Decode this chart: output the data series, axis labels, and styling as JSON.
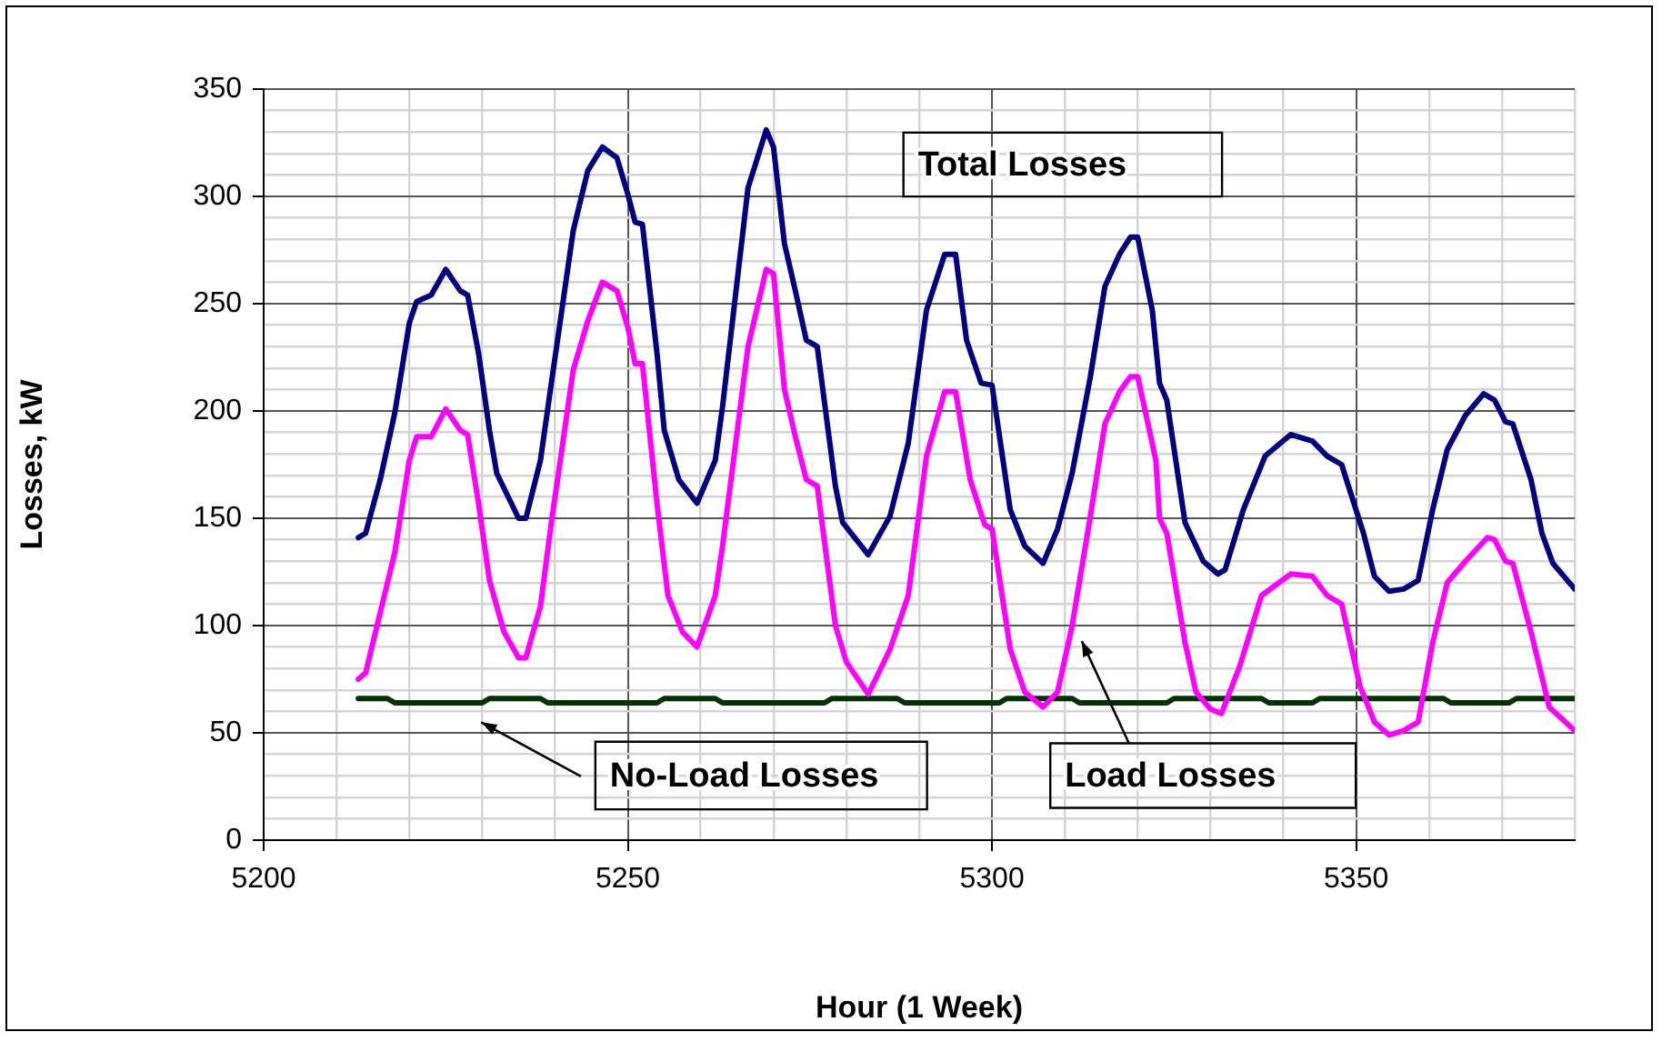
{
  "chart_data": {
    "type": "line",
    "xlabel": "Hour (1 Week)",
    "ylabel": "Losses, kW",
    "xlim": [
      5200,
      5380
    ],
    "xticks": [
      5200,
      {
        "value": 5210,
        "label": null
      },
      {
        "value": 5220,
        "label": null
      },
      {
        "value": 5230,
        "label": null
      },
      {
        "value": 5240,
        "label": null
      },
      5250,
      {
        "value": 5260,
        "label": null
      },
      {
        "value": 5270,
        "label": null
      },
      {
        "value": 5280,
        "label": null
      },
      {
        "value": 5290,
        "label": null
      },
      5300,
      {
        "value": 5310,
        "label": null
      },
      {
        "value": 5320,
        "label": null
      },
      {
        "value": 5330,
        "label": null
      },
      {
        "value": 5340,
        "label": null
      },
      5350,
      {
        "value": 5360,
        "label": null
      },
      {
        "value": 5370,
        "label": null
      },
      {
        "value": 5380,
        "label": null
      }
    ],
    "ylim": [
      0,
      350
    ],
    "yticks": [
      0,
      {
        "value": 10,
        "label": null
      },
      {
        "value": 20,
        "label": null
      },
      {
        "value": 30,
        "label": null
      },
      {
        "value": 40,
        "label": null
      },
      50,
      {
        "value": 60,
        "label": null
      },
      {
        "value": 70,
        "label": null
      },
      {
        "value": 80,
        "label": null
      },
      {
        "value": 90,
        "label": null
      },
      100,
      {
        "value": 110,
        "label": null
      },
      {
        "value": 120,
        "label": null
      },
      {
        "value": 130,
        "label": null
      },
      {
        "value": 140,
        "label": null
      },
      150,
      {
        "value": 160,
        "label": null
      },
      {
        "value": 170,
        "label": null
      },
      {
        "value": 180,
        "label": null
      },
      {
        "value": 190,
        "label": null
      },
      200,
      {
        "value": 210,
        "label": null
      },
      {
        "value": 220,
        "label": null
      },
      {
        "value": 230,
        "label": null
      },
      {
        "value": 240,
        "label": null
      },
      250,
      {
        "value": 260,
        "label": null
      },
      {
        "value": 270,
        "label": null
      },
      {
        "value": 280,
        "label": null
      },
      {
        "value": 290,
        "label": null
      },
      300,
      {
        "value": 310,
        "label": null
      },
      {
        "value": 320,
        "label": null
      },
      {
        "value": 330,
        "label": null
      },
      {
        "value": 340,
        "label": null
      },
      350
    ],
    "grid": true,
    "legend": false,
    "marker": "none",
    "line_style": "solid",
    "series": [
      {
        "name": "Total Losses",
        "color": "#000080",
        "x": [
          5213,
          5214,
          5216,
          5218,
          5220,
          5221,
          5223,
          5225,
          5227,
          5228,
          5229.5,
          5231,
          5232,
          5235,
          5236,
          5238,
          5239.5,
          5242.5,
          5244.5,
          5246.5,
          5248.5,
          5250,
          5251,
          5252,
          5254,
          5255,
          5257,
          5259.5,
          5262,
          5263,
          5266.5,
          5269,
          5270,
          5271.5,
          5273,
          5274.5,
          5276,
          5278.5,
          5279.5,
          5283,
          5286,
          5288.5,
          5291,
          5293.5,
          5295,
          5296.5,
          5298.5,
          5300,
          5302.5,
          5304.5,
          5307,
          5309,
          5311,
          5313.5,
          5315.5,
          5317.5,
          5319,
          5320,
          5322,
          5323,
          5324,
          5326.5,
          5329,
          5331,
          5332,
          5334.5,
          5337.5,
          5341,
          5344,
          5346,
          5348,
          5351,
          5352.5,
          5354.5,
          5356.5,
          5358.5,
          5360.5,
          5362.5,
          5365,
          5367.5,
          5369,
          5370.5,
          5371.5,
          5374,
          5375.5,
          5377,
          5380
        ],
        "values": [
          141,
          143,
          168,
          199,
          241,
          251,
          254,
          266,
          256,
          254,
          227,
          191,
          171,
          150,
          150,
          177,
          213,
          284,
          312,
          323,
          318,
          301,
          288,
          287,
          227,
          191,
          168,
          157,
          177,
          202,
          304,
          331,
          323,
          278,
          256,
          233,
          230,
          165,
          148,
          133,
          151,
          185,
          247,
          273,
          273,
          233,
          213,
          212,
          154,
          137,
          129,
          145,
          171,
          216,
          258,
          273,
          281,
          281,
          247,
          213,
          205,
          148,
          130,
          124,
          126,
          154,
          179,
          189,
          186,
          179,
          175,
          143,
          123,
          116,
          117,
          121,
          154,
          182,
          198,
          208,
          205,
          195,
          194,
          168,
          143,
          129,
          117
        ]
      },
      {
        "name": "Load Losses",
        "color": "#ff00ff",
        "x": [
          5213,
          5214,
          5216,
          5218,
          5220,
          5221,
          5223,
          5225,
          5227,
          5228,
          5229.5,
          5231,
          5233,
          5235,
          5236,
          5238,
          5239.5,
          5242.5,
          5244.5,
          5246.5,
          5248.5,
          5250,
          5251,
          5252,
          5254,
          5255.5,
          5257.5,
          5259.5,
          5262,
          5263,
          5266.5,
          5269,
          5270,
          5271.5,
          5273,
          5274.5,
          5276,
          5278.5,
          5280,
          5283,
          5286,
          5288.5,
          5291,
          5293.5,
          5295,
          5297,
          5299,
          5300,
          5302.5,
          5304.5,
          5307,
          5309,
          5311,
          5313.5,
          5315.5,
          5317.5,
          5319,
          5320,
          5322.5,
          5323,
          5324,
          5326.5,
          5328,
          5330,
          5331.5,
          5334,
          5337,
          5341,
          5344,
          5346,
          5348,
          5350.5,
          5352.5,
          5354.5,
          5356.5,
          5358.5,
          5360.5,
          5362.5,
          5365,
          5368,
          5369,
          5370.5,
          5371.5,
          5374,
          5376.5,
          5380
        ],
        "values": [
          75,
          78,
          106,
          134,
          177,
          188,
          188,
          201,
          191,
          189,
          157,
          121,
          97,
          85,
          85,
          109,
          148,
          219,
          242,
          260,
          256,
          239,
          222,
          222,
          157,
          114,
          97,
          90,
          114,
          137,
          230,
          266,
          264,
          210,
          188,
          168,
          165,
          100,
          83,
          68,
          89,
          114,
          179,
          209,
          209,
          168,
          147,
          145,
          89,
          69,
          62,
          69,
          100,
          151,
          194,
          209,
          216,
          216,
          177,
          150,
          143,
          92,
          69,
          61,
          59,
          81,
          114,
          124,
          123,
          114,
          110,
          72,
          55,
          49,
          51,
          55,
          92,
          120,
          130,
          141,
          140,
          130,
          129,
          97,
          62,
          51
        ]
      },
      {
        "name": "No-Load Losses",
        "color": "#003300",
        "x": [
          5213,
          5217,
          5218,
          5230,
          5231,
          5238,
          5239,
          5254,
          5255,
          5262,
          5263,
          5277,
          5278,
          5287,
          5288,
          5301,
          5302,
          5311,
          5312,
          5324,
          5325,
          5337,
          5338,
          5344,
          5345,
          5362,
          5363,
          5371,
          5372,
          5380
        ],
        "values": [
          66,
          66,
          64,
          64,
          66,
          66,
          64,
          64,
          66,
          66,
          64,
          64,
          66,
          66,
          64,
          64,
          66,
          66,
          64,
          64,
          66,
          66,
          64,
          64,
          66,
          66,
          64,
          64,
          66,
          66
        ]
      }
    ]
  }
}
